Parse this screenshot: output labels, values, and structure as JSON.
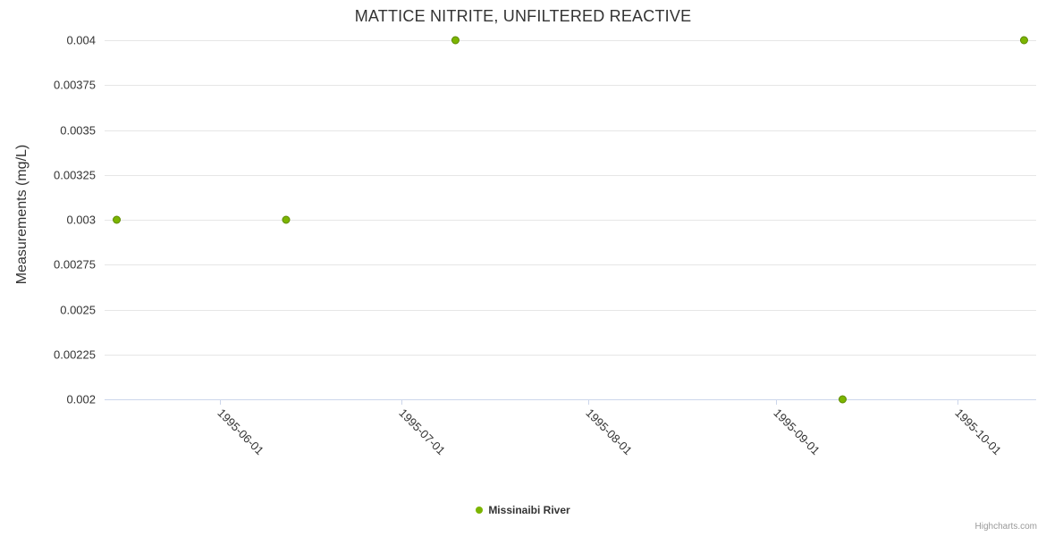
{
  "credits": "Highcharts.com",
  "chart_data": {
    "type": "scatter",
    "title": "MATTICE NITRITE, UNFILTERED REACTIVE",
    "xlabel": "",
    "ylabel": "Measurements (mg/L)",
    "ylim": [
      0.002,
      0.004
    ],
    "ytick_interval": 0.00025,
    "yticks": [
      0.002,
      0.00225,
      0.0025,
      0.00275,
      0.003,
      0.00325,
      0.0035,
      0.00375,
      0.004
    ],
    "ytick_labels": [
      "0.002",
      "0.00225",
      "0.0025",
      "0.00275",
      "0.003",
      "0.00325",
      "0.0035",
      "0.00375",
      "0.004"
    ],
    "xticks": [
      "1995-06-01",
      "1995-07-01",
      "1995-08-01",
      "1995-09-01",
      "1995-10-01"
    ],
    "xlim": [
      "1995-05-13",
      "1995-10-14"
    ],
    "grid": "horizontal",
    "legend_position": "bottom-center",
    "series": [
      {
        "name": "Missinaibi River",
        "color": "#7cb500",
        "marker_radius": 4,
        "points": [
          {
            "date": "1995-05-15",
            "value": 0.003
          },
          {
            "date": "1995-06-12",
            "value": 0.003
          },
          {
            "date": "1995-07-10",
            "value": 0.004
          },
          {
            "date": "1995-09-12",
            "value": 0.002
          },
          {
            "date": "1995-10-12",
            "value": 0.004
          }
        ]
      }
    ]
  }
}
